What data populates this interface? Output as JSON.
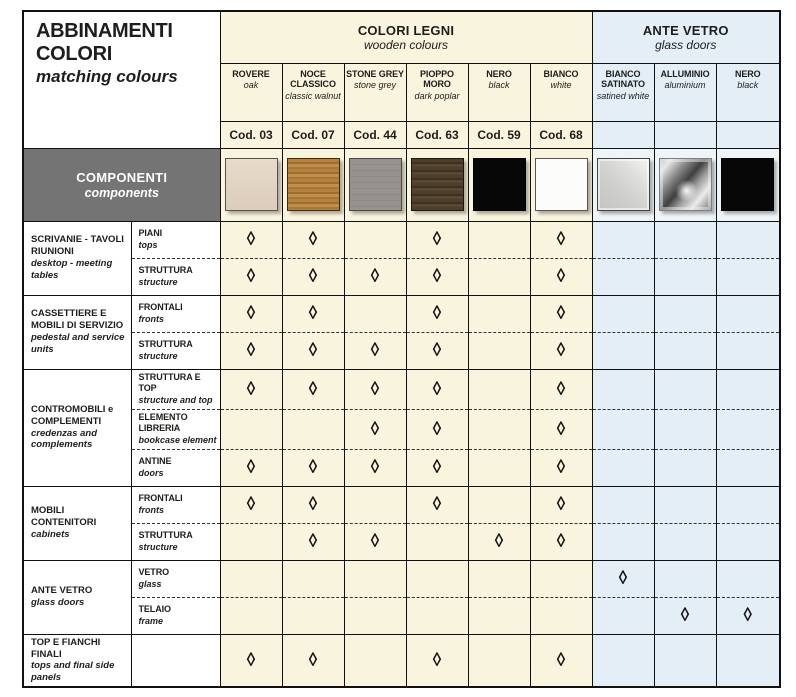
{
  "palette": {
    "wood_bg": "#f8f4dd",
    "glass_bg": "#e4eef6",
    "components_gray": "#757474",
    "ink": "#1d1d1b",
    "mark_color": "#111111"
  },
  "title": {
    "it": "ABBINAMENTI COLORI",
    "en": "matching colours"
  },
  "groups": {
    "wood": {
      "it": "COLORI LEGNI",
      "en": "wooden colours"
    },
    "glass": {
      "it": "ANTE VETRO",
      "en": "glass doors"
    }
  },
  "components_header": {
    "it": "COMPONENTI",
    "en": "components"
  },
  "mark_symbol": "◊",
  "columns": [
    {
      "name": "ROVERE",
      "sub": "oak",
      "code": "Cod. 03",
      "group": "wood",
      "swatch": "rovere",
      "hex": "#e3d6c5"
    },
    {
      "name": "NOCE CLASSICO",
      "sub": "classic walnut",
      "code": "Cod. 07",
      "group": "wood",
      "swatch": "noce",
      "hex": "#b17c3c"
    },
    {
      "name": "STONE GREY",
      "sub": "stone grey",
      "code": "Cod. 44",
      "group": "wood",
      "swatch": "stone",
      "hex": "#97918d"
    },
    {
      "name": "PIOPPO MORO",
      "sub": "dark poplar",
      "code": "Cod. 63",
      "group": "wood",
      "swatch": "pioppo",
      "hex": "#493b28"
    },
    {
      "name": "NERO",
      "sub": "black",
      "code": "Cod. 59",
      "group": "wood",
      "swatch": "nero",
      "hex": "#0a0a0a"
    },
    {
      "name": "BIANCO",
      "sub": "white",
      "code": "Cod. 68",
      "group": "wood",
      "swatch": "bianco",
      "hex": "#fbfbfa"
    },
    {
      "name": "BIANCO SATINATO",
      "sub": "satined white",
      "code": "",
      "group": "glass",
      "swatch": "satinato",
      "hex": "#d6d6d4"
    },
    {
      "name": "ALLUMINIO",
      "sub": "aluminium",
      "code": "",
      "group": "glass",
      "swatch": "alluminio",
      "hex": "#9a9a9a"
    },
    {
      "name": "NERO",
      "sub": "black",
      "code": "",
      "group": "glass",
      "swatch": "neroglass",
      "hex": "#0a0a0a"
    }
  ],
  "sections": [
    {
      "it": "SCRIVANIE - TAVOLI RIUNIONI",
      "en": "desktop - meeting tables",
      "rows": [
        {
          "it": "PIANI",
          "en": "tops",
          "marks": [
            1,
            1,
            0,
            1,
            0,
            1,
            0,
            0,
            0
          ]
        },
        {
          "it": "STRUTTURA",
          "en": "structure",
          "marks": [
            1,
            1,
            1,
            1,
            0,
            1,
            0,
            0,
            0
          ]
        }
      ]
    },
    {
      "it": "CASSETTIERE E MOBILI DI SERVIZIO",
      "en": "pedestal and service units",
      "rows": [
        {
          "it": "FRONTALI",
          "en": "fronts",
          "marks": [
            1,
            1,
            0,
            1,
            0,
            1,
            0,
            0,
            0
          ]
        },
        {
          "it": "STRUTTURA",
          "en": "structure",
          "marks": [
            1,
            1,
            1,
            1,
            0,
            1,
            0,
            0,
            0
          ]
        }
      ]
    },
    {
      "it": "CONTROMOBILI e COMPLEMENTI",
      "en": "credenzas and complements",
      "rows": [
        {
          "it": "STRUTTURA E TOP",
          "en": "structure and top",
          "marks": [
            1,
            1,
            1,
            1,
            0,
            1,
            0,
            0,
            0
          ]
        },
        {
          "it": "ELEMENTO LIBRERIA",
          "en": "bookcase element",
          "marks": [
            0,
            0,
            1,
            1,
            0,
            1,
            0,
            0,
            0
          ]
        },
        {
          "it": "ANTINE",
          "en": "doors",
          "marks": [
            1,
            1,
            1,
            1,
            0,
            1,
            0,
            0,
            0
          ]
        }
      ]
    },
    {
      "it": "MOBILI CONTENITORI",
      "en": "cabinets",
      "rows": [
        {
          "it": "FRONTALI",
          "en": "fronts",
          "marks": [
            1,
            1,
            0,
            1,
            0,
            1,
            0,
            0,
            0
          ]
        },
        {
          "it": "STRUTTURA",
          "en": "structure",
          "marks": [
            0,
            1,
            1,
            0,
            1,
            1,
            0,
            0,
            0
          ]
        }
      ]
    },
    {
      "it": "ANTE VETRO",
      "en": "glass doors",
      "rows": [
        {
          "it": "VETRO",
          "en": "glass",
          "marks": [
            0,
            0,
            0,
            0,
            0,
            0,
            1,
            0,
            0
          ]
        },
        {
          "it": "TELAIO",
          "en": "frame",
          "marks": [
            0,
            0,
            0,
            0,
            0,
            0,
            0,
            1,
            1
          ]
        }
      ]
    },
    {
      "it": "TOP E FIANCHI FINALI",
      "en": "tops and final side panels",
      "rows": [
        {
          "it": "",
          "en": "",
          "marks": [
            1,
            1,
            0,
            1,
            0,
            1,
            0,
            0,
            0
          ]
        }
      ]
    }
  ]
}
